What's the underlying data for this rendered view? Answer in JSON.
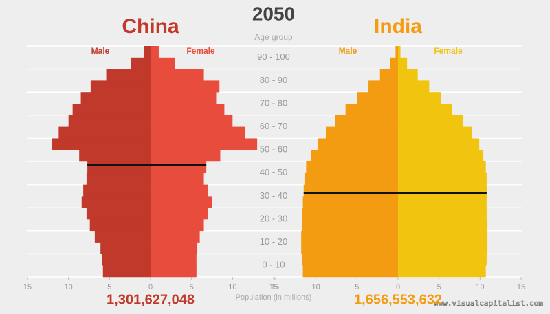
{
  "title": "2050",
  "age_axis": {
    "label": "Age group",
    "lim": [
      0,
      100
    ],
    "bins": [
      0,
      5,
      10,
      15,
      20,
      25,
      30,
      35,
      40,
      45,
      50,
      55,
      60,
      65,
      70,
      75,
      80,
      85,
      90,
      95,
      100
    ],
    "ticks": [
      {
        "value": 5,
        "label": "0 - 10"
      },
      {
        "value": 15,
        "label": "10 - 20"
      },
      {
        "value": 25,
        "label": "20 - 30"
      },
      {
        "value": 35,
        "label": "30 - 40"
      },
      {
        "value": 45,
        "label": "40 - 50"
      },
      {
        "value": 55,
        "label": "50 - 60"
      },
      {
        "value": 65,
        "label": "60 - 70"
      },
      {
        "value": 75,
        "label": "70 - 80"
      },
      {
        "value": 85,
        "label": "80 - 90"
      },
      {
        "value": 95,
        "label": "90 - 100"
      }
    ]
  },
  "x_axis_label": "Population (in millions)",
  "watermark": "www.visualcapitalist.com",
  "chart_data": [
    {
      "type": "pyramid",
      "title": "China",
      "title_color": "#c0392b",
      "xlim": [
        0,
        15
      ],
      "xticks": [
        0,
        5,
        10,
        15
      ],
      "total": {
        "value": 1301627048,
        "label": "1,301,627,048"
      },
      "median_age": 48.5,
      "series": [
        {
          "name": "Male",
          "color": "#c0392b",
          "values": [
            5.8,
            5.9,
            6.1,
            6.8,
            7.4,
            7.8,
            8.4,
            8.2,
            7.8,
            7.7,
            8.7,
            12.0,
            11.2,
            10.0,
            9.5,
            8.5,
            7.3,
            5.4,
            2.4,
            0.8
          ]
        },
        {
          "name": "Female",
          "color": "#e74c3c",
          "values": [
            5.6,
            5.6,
            5.7,
            6.0,
            6.5,
            7.0,
            7.5,
            7.0,
            6.5,
            6.8,
            8.5,
            13.0,
            11.5,
            10.0,
            9.0,
            8.0,
            8.4,
            6.5,
            3.0,
            1.0
          ]
        }
      ]
    },
    {
      "type": "pyramid",
      "title": "India",
      "title_color": "#f39c12",
      "xlim": [
        0,
        15
      ],
      "xticks": [
        0,
        5,
        10,
        15
      ],
      "total": {
        "value": 1656553632,
        "label": "1,656,553,632"
      },
      "median_age": 36.3,
      "series": [
        {
          "name": "Male",
          "color": "#f39c12",
          "values": [
            11.6,
            11.7,
            11.8,
            11.8,
            11.7,
            11.7,
            11.6,
            11.5,
            11.4,
            11.2,
            10.6,
            9.8,
            8.8,
            7.7,
            6.4,
            5.0,
            3.6,
            2.2,
            1.0,
            0.3
          ]
        },
        {
          "name": "Female",
          "color": "#f1c40f",
          "values": [
            10.7,
            10.8,
            10.9,
            10.9,
            10.9,
            10.8,
            10.8,
            10.8,
            10.8,
            10.7,
            10.4,
            9.9,
            9.0,
            7.9,
            6.6,
            5.2,
            3.8,
            2.4,
            1.1,
            0.3
          ]
        }
      ]
    }
  ]
}
